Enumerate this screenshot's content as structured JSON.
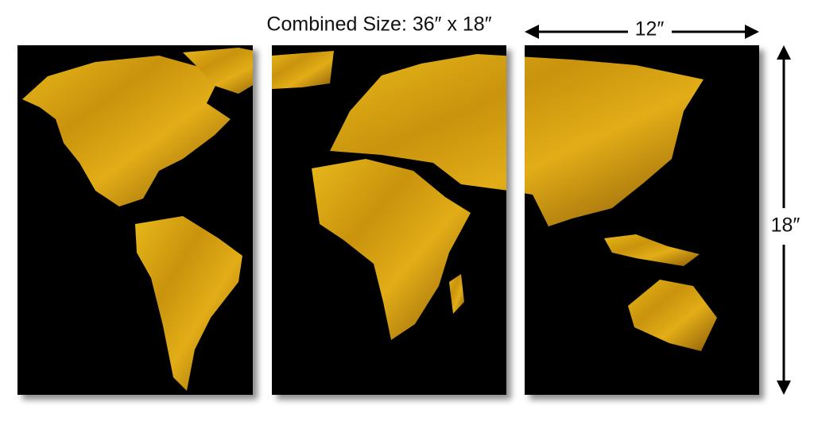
{
  "heading": "Combined Size: 36″ x 18″",
  "width_label": "12″",
  "height_label": "18″"
}
